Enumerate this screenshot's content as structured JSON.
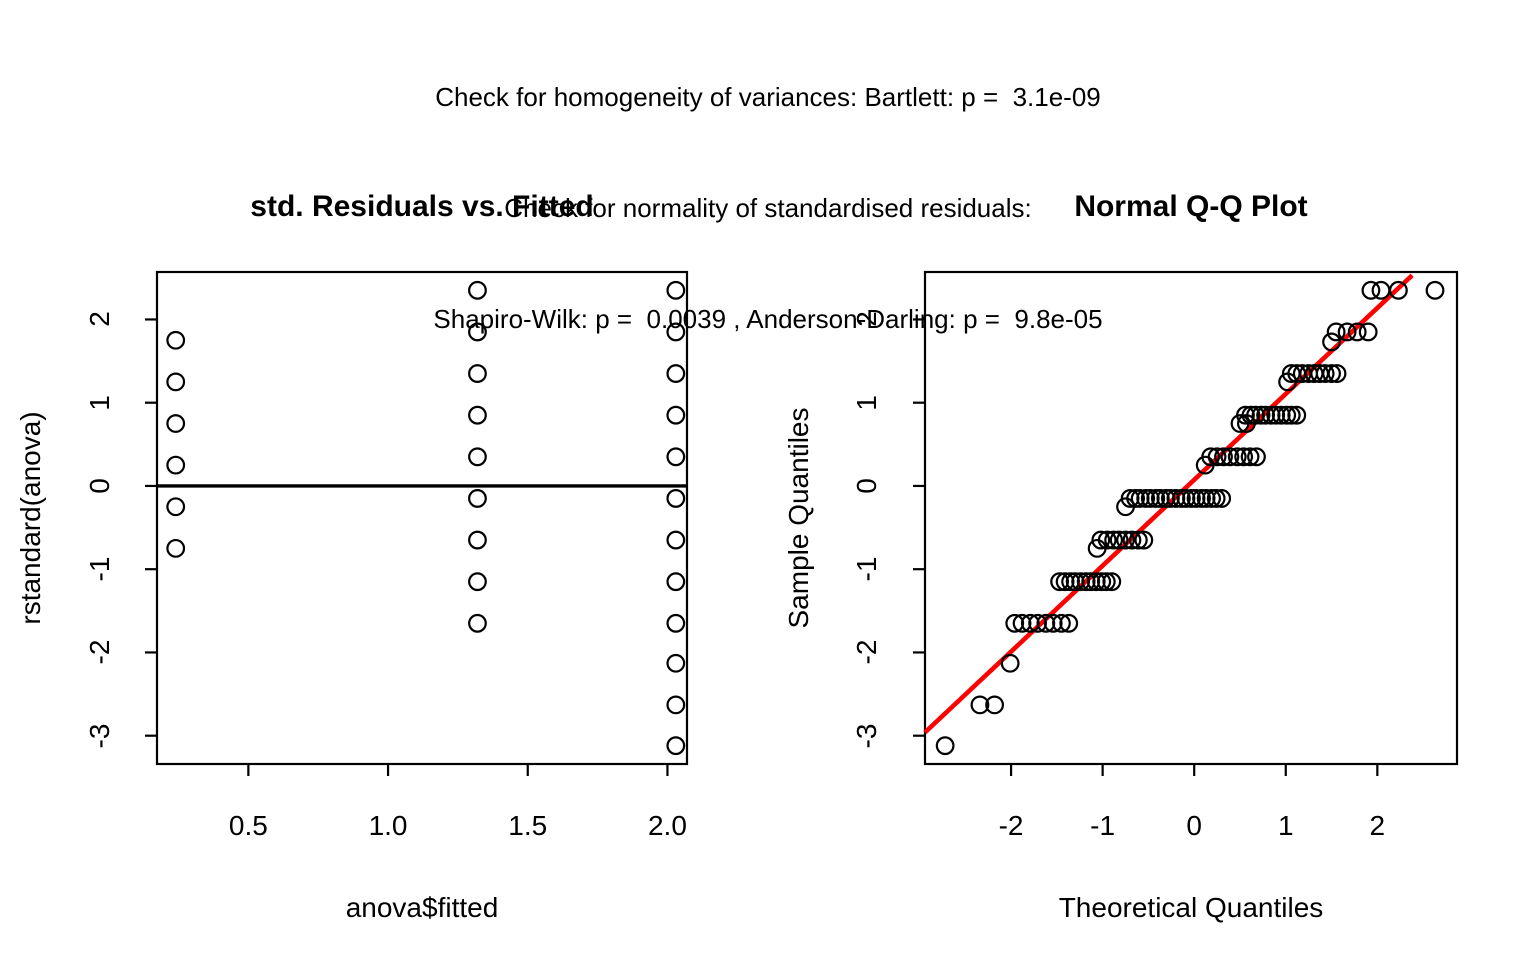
{
  "header": {
    "line1": "Check for homogeneity of variances: Bartlett: p =  3.1e-09",
    "line2": "Check for normality of standardised residuals:",
    "line3": "Shapiro-Wilk: p =  0.0039 , Anderson-Darling: p =  9.8e-05"
  },
  "colors": {
    "background": "#ffffff",
    "axis": "#000000",
    "point": "#000000",
    "qq_line": "#ff0000"
  },
  "chart_data": [
    {
      "type": "scatter",
      "title": "std. Residuals vs. Fitted",
      "xlabel": "anova$fitted",
      "ylabel": "rstandard(anova)",
      "xlim": [
        0.173,
        2.07
      ],
      "ylim": [
        -3.34,
        2.57
      ],
      "grid": false,
      "hline": 0,
      "xticks": [
        {
          "value": 0.5,
          "label": "0.5"
        },
        {
          "value": 1.0,
          "label": "1.0"
        },
        {
          "value": 1.5,
          "label": "1.5"
        },
        {
          "value": 2.0,
          "label": "2.0"
        }
      ],
      "yticks": [
        {
          "value": 2,
          "label": "2"
        },
        {
          "value": 1,
          "label": "1"
        },
        {
          "value": 0,
          "label": "0"
        },
        {
          "value": -1,
          "label": "-1"
        },
        {
          "value": -2,
          "label": "-2"
        },
        {
          "value": -3,
          "label": "-3"
        }
      ],
      "series": [
        {
          "x": 0.24,
          "ys": [
            1.75,
            1.25,
            0.75,
            0.25,
            -0.25,
            -0.75
          ]
        },
        {
          "x": 1.32,
          "ys": [
            2.35,
            1.85,
            1.35,
            0.85,
            0.35,
            -0.15,
            -0.65,
            -1.15,
            -1.65
          ]
        },
        {
          "x": 2.03,
          "ys": [
            2.35,
            1.85,
            1.35,
            0.85,
            0.35,
            -0.15,
            -0.65,
            -1.15,
            -1.65,
            -2.13,
            -2.63,
            -3.12
          ]
        }
      ]
    },
    {
      "type": "scatter",
      "title": "Normal Q-Q Plot",
      "xlabel": "Theoretical Quantiles",
      "ylabel": "Sample Quantiles",
      "xlim": [
        -2.94,
        2.87
      ],
      "ylim": [
        -3.34,
        2.57
      ],
      "grid": false,
      "qqline": {
        "x1": -2.94,
        "y1": -2.96,
        "x2": 2.38,
        "y2": 2.53
      },
      "xticks": [
        {
          "value": -2,
          "label": "-2"
        },
        {
          "value": -1,
          "label": "-1"
        },
        {
          "value": 0,
          "label": "0"
        },
        {
          "value": 1,
          "label": "1"
        },
        {
          "value": 2,
          "label": "2"
        }
      ],
      "yticks": [
        {
          "value": 2,
          "label": "2"
        },
        {
          "value": 1,
          "label": "1"
        },
        {
          "value": 0,
          "label": "0"
        },
        {
          "value": -1,
          "label": "-1"
        },
        {
          "value": -2,
          "label": "-2"
        },
        {
          "value": -3,
          "label": "-3"
        }
      ],
      "clusters": [
        {
          "y": 2.35,
          "qs": [
            1.93,
            2.04,
            2.23,
            2.63
          ]
        },
        {
          "y": 1.85,
          "qs": [
            1.55,
            1.67,
            1.78,
            1.9
          ]
        },
        {
          "y": 1.73,
          "qs": [
            1.5
          ]
        },
        {
          "y": 1.35,
          "qs": [
            1.06,
            1.12,
            1.18,
            1.25,
            1.31,
            1.37,
            1.43,
            1.5,
            1.56
          ]
        },
        {
          "y": 1.25,
          "qs": [
            1.02
          ]
        },
        {
          "y": 0.85,
          "qs": [
            0.56,
            0.62,
            0.67,
            0.73,
            0.78,
            0.84,
            0.89,
            0.95,
            1.01,
            1.06,
            1.12
          ]
        },
        {
          "y": 0.75,
          "qs": [
            0.5,
            0.57
          ]
        },
        {
          "y": 0.35,
          "qs": [
            0.18,
            0.25,
            0.32,
            0.39,
            0.47,
            0.54,
            0.61,
            0.68
          ]
        },
        {
          "y": 0.25,
          "qs": [
            0.12
          ]
        },
        {
          "y": -0.15,
          "qs": [
            -0.7,
            -0.64,
            -0.59,
            -0.53,
            -0.48,
            -0.42,
            -0.37,
            -0.31,
            -0.26,
            -0.2,
            -0.14,
            -0.09,
            -0.03,
            0.02,
            0.08,
            0.13,
            0.19,
            0.24,
            0.3
          ]
        },
        {
          "y": -0.25,
          "qs": [
            -0.75
          ]
        },
        {
          "y": -0.65,
          "qs": [
            -1.02,
            -0.95,
            -0.88,
            -0.82,
            -0.75,
            -0.68,
            -0.61,
            -0.55
          ]
        },
        {
          "y": -0.75,
          "qs": [
            -1.06
          ]
        },
        {
          "y": -1.15,
          "qs": [
            -1.47,
            -1.41,
            -1.35,
            -1.3,
            -1.24,
            -1.18,
            -1.13,
            -1.07,
            -1.01,
            -0.96,
            -0.9
          ]
        },
        {
          "y": -1.65,
          "qs": [
            -1.96,
            -1.88,
            -1.79,
            -1.71,
            -1.62,
            -1.54,
            -1.45,
            -1.37
          ]
        },
        {
          "y": -2.13,
          "qs": [
            -2.01
          ]
        },
        {
          "y": -2.63,
          "qs": [
            -2.34,
            -2.18
          ]
        },
        {
          "y": -3.12,
          "qs": [
            -2.72
          ]
        }
      ]
    }
  ]
}
